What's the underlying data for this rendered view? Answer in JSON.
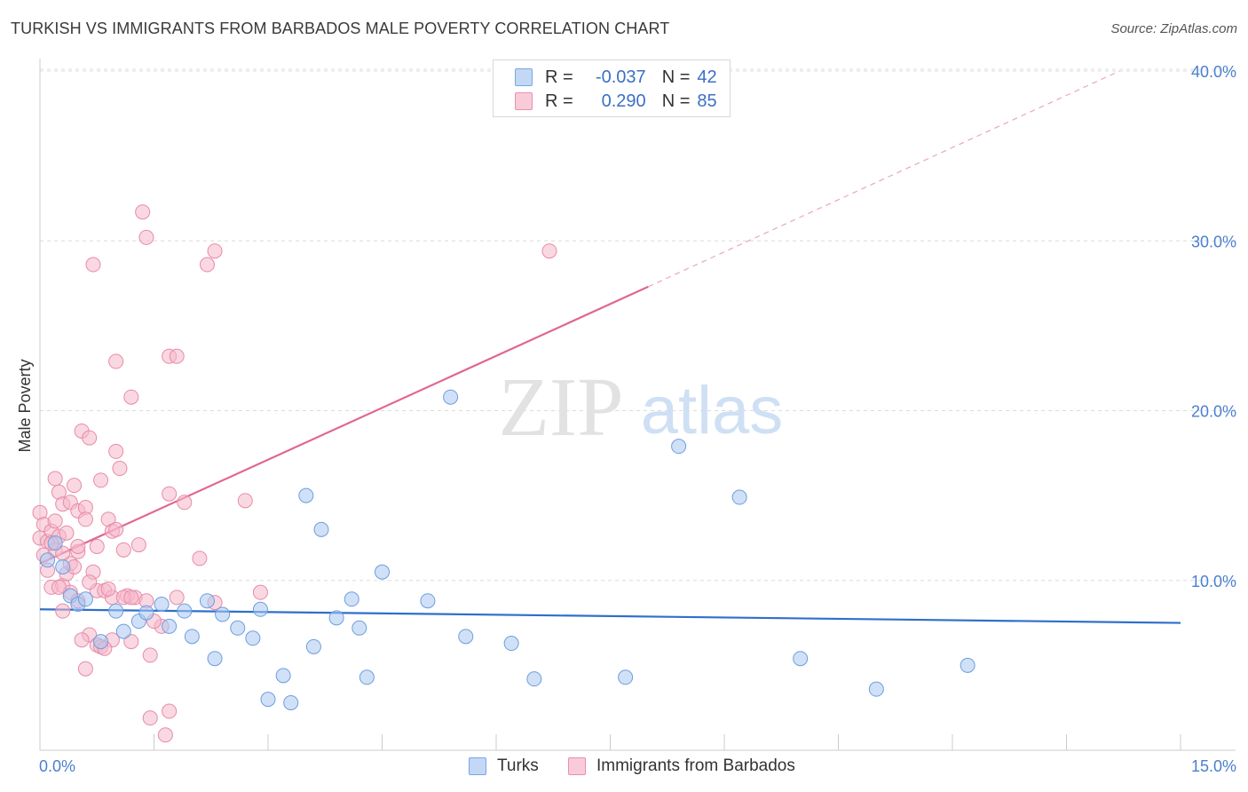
{
  "title": "TURKISH VS IMMIGRANTS FROM BARBADOS MALE POVERTY CORRELATION CHART",
  "source": "Source: ZipAtlas.com",
  "watermark": {
    "zip": "ZIP",
    "atlas": "atlas"
  },
  "legend": {
    "r_label": "R =",
    "n_label": "N =",
    "turks": {
      "r": "-0.037",
      "n": "42"
    },
    "barbados": {
      "r": "0.290",
      "n": "85"
    }
  },
  "colors": {
    "turks_fill": "#a9c8f0",
    "turks_stroke": "#6d9de0",
    "turks_line": "#2f6fcc",
    "barbados_fill": "#f5b8cb",
    "barbados_stroke": "#e88aa9",
    "barbados_line": "#e06890",
    "grid": "#dcdcdc",
    "tick_text": "#4a7fd0"
  },
  "chart_data": {
    "type": "scatter",
    "title": "TURKISH VS IMMIGRANTS FROM BARBADOS MALE POVERTY CORRELATION CHART",
    "xlabel": "",
    "ylabel": "Male Poverty",
    "xlim": [
      0,
      15
    ],
    "ylim": [
      0,
      40
    ],
    "x_tick_labels": [
      "0.0%",
      "15.0%"
    ],
    "y_ticks": [
      10,
      20,
      30,
      40
    ],
    "y_tick_labels": [
      "10.0%",
      "20.0%",
      "30.0%",
      "40.0%"
    ],
    "grid": true,
    "legend_position": "bottom",
    "series": [
      {
        "name": "Turks",
        "trend": {
          "x0": 0,
          "y0": 8.3,
          "x1": 15,
          "y1": 7.5
        },
        "points": [
          [
            0.1,
            11.2
          ],
          [
            0.2,
            12.2
          ],
          [
            0.3,
            10.8
          ],
          [
            0.4,
            9.1
          ],
          [
            0.5,
            8.6
          ],
          [
            0.6,
            8.9
          ],
          [
            0.8,
            6.4
          ],
          [
            1.0,
            8.2
          ],
          [
            1.1,
            7.0
          ],
          [
            1.3,
            7.6
          ],
          [
            1.4,
            8.1
          ],
          [
            1.6,
            8.6
          ],
          [
            1.7,
            7.3
          ],
          [
            1.9,
            8.2
          ],
          [
            2.0,
            6.7
          ],
          [
            2.2,
            8.8
          ],
          [
            2.3,
            5.4
          ],
          [
            2.4,
            8.0
          ],
          [
            2.6,
            7.2
          ],
          [
            2.8,
            6.6
          ],
          [
            2.9,
            8.3
          ],
          [
            3.0,
            3.0
          ],
          [
            3.2,
            4.4
          ],
          [
            3.3,
            2.8
          ],
          [
            3.5,
            15.0
          ],
          [
            3.6,
            6.1
          ],
          [
            3.7,
            13.0
          ],
          [
            3.9,
            7.8
          ],
          [
            4.1,
            8.9
          ],
          [
            4.2,
            7.2
          ],
          [
            4.3,
            4.3
          ],
          [
            4.5,
            10.5
          ],
          [
            5.1,
            8.8
          ],
          [
            5.4,
            20.8
          ],
          [
            5.6,
            6.7
          ],
          [
            6.2,
            6.3
          ],
          [
            6.5,
            4.2
          ],
          [
            7.7,
            4.3
          ],
          [
            8.4,
            17.9
          ],
          [
            9.2,
            14.9
          ],
          [
            10.0,
            5.4
          ],
          [
            11.0,
            3.6
          ],
          [
            12.2,
            5.0
          ]
        ]
      },
      {
        "name": "Immigrants from Barbados",
        "trend": {
          "x0": 0,
          "y0": 11.0,
          "x1": 8.0,
          "y1": 27.3,
          "dash_to": {
            "x": 14.2,
            "y": 40
          }
        },
        "points": [
          [
            0.0,
            14.0
          ],
          [
            0.0,
            12.5
          ],
          [
            0.05,
            13.3
          ],
          [
            0.05,
            11.5
          ],
          [
            0.1,
            12.3
          ],
          [
            0.1,
            10.6
          ],
          [
            0.15,
            9.6
          ],
          [
            0.15,
            12.9
          ],
          [
            0.2,
            16.0
          ],
          [
            0.2,
            13.5
          ],
          [
            0.2,
            11.8
          ],
          [
            0.25,
            15.2
          ],
          [
            0.25,
            12.6
          ],
          [
            0.3,
            14.5
          ],
          [
            0.3,
            9.7
          ],
          [
            0.3,
            8.2
          ],
          [
            0.35,
            12.8
          ],
          [
            0.35,
            10.4
          ],
          [
            0.4,
            14.6
          ],
          [
            0.4,
            11.0
          ],
          [
            0.4,
            9.3
          ],
          [
            0.45,
            15.6
          ],
          [
            0.45,
            10.8
          ],
          [
            0.5,
            14.1
          ],
          [
            0.5,
            11.7
          ],
          [
            0.5,
            8.8
          ],
          [
            0.55,
            18.8
          ],
          [
            0.6,
            14.3
          ],
          [
            0.6,
            13.6
          ],
          [
            0.6,
            4.8
          ],
          [
            0.65,
            18.4
          ],
          [
            0.65,
            6.8
          ],
          [
            0.7,
            28.6
          ],
          [
            0.7,
            10.5
          ],
          [
            0.75,
            12.0
          ],
          [
            0.75,
            9.4
          ],
          [
            0.75,
            6.2
          ],
          [
            0.8,
            15.9
          ],
          [
            0.8,
            6.1
          ],
          [
            0.85,
            9.4
          ],
          [
            0.9,
            13.6
          ],
          [
            0.95,
            12.9
          ],
          [
            0.95,
            9.0
          ],
          [
            0.95,
            6.5
          ],
          [
            1.0,
            22.9
          ],
          [
            1.0,
            17.6
          ],
          [
            1.05,
            16.6
          ],
          [
            1.1,
            11.8
          ],
          [
            1.15,
            9.1
          ],
          [
            1.2,
            20.8
          ],
          [
            1.2,
            6.4
          ],
          [
            1.25,
            9.0
          ],
          [
            1.3,
            12.1
          ],
          [
            1.35,
            31.7
          ],
          [
            1.4,
            30.2
          ],
          [
            1.45,
            5.6
          ],
          [
            1.45,
            1.9
          ],
          [
            1.6,
            7.3
          ],
          [
            1.65,
            0.9
          ],
          [
            1.7,
            23.2
          ],
          [
            1.7,
            15.1
          ],
          [
            1.7,
            2.3
          ],
          [
            1.8,
            23.2
          ],
          [
            1.8,
            9.0
          ],
          [
            1.9,
            14.6
          ],
          [
            2.1,
            11.3
          ],
          [
            2.2,
            28.6
          ],
          [
            2.3,
            29.4
          ],
          [
            2.3,
            8.7
          ],
          [
            2.7,
            14.7
          ],
          [
            2.9,
            9.3
          ],
          [
            6.7,
            29.4
          ],
          [
            0.15,
            12.2
          ],
          [
            0.25,
            9.6
          ],
          [
            0.5,
            12.0
          ],
          [
            0.55,
            6.5
          ],
          [
            0.65,
            9.9
          ],
          [
            0.85,
            6.0
          ],
          [
            1.0,
            13.0
          ],
          [
            1.1,
            9.0
          ],
          [
            1.2,
            9.0
          ],
          [
            0.9,
            9.5
          ],
          [
            0.3,
            11.6
          ],
          [
            1.4,
            8.8
          ],
          [
            1.5,
            7.6
          ]
        ]
      }
    ]
  },
  "bottom_legend": {
    "turks": "Turks",
    "barbados": "Immigrants from Barbados"
  }
}
